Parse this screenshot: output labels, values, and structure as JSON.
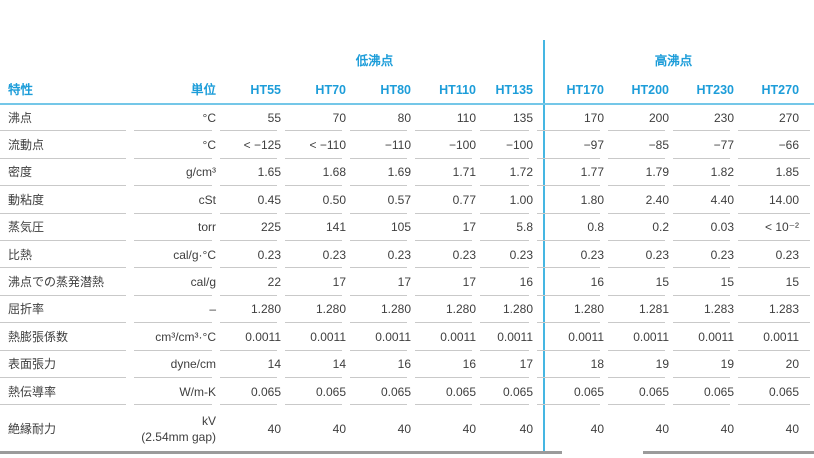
{
  "colors": {
    "header_blue": "#1d9dd9",
    "divider_blue": "#45b6e2",
    "underline_blue": "#74c7e8",
    "row_separator_gray": "#c9c9c9",
    "bottom_border_gray": "#9b9b9b",
    "body_text": "#3e3e3e"
  },
  "table": {
    "groups": {
      "low": "低沸点",
      "high": "高沸点"
    },
    "headers": {
      "property": "特性",
      "unit": "単位",
      "products": [
        "HT55",
        "HT70",
        "HT80",
        "HT110",
        "HT135",
        "HT170",
        "HT200",
        "HT230",
        "HT270"
      ]
    },
    "rows": [
      {
        "property": "沸点",
        "unit": "°C",
        "values": [
          "55",
          "70",
          "80",
          "110",
          "135",
          "170",
          "200",
          "230",
          "270"
        ]
      },
      {
        "property": "流動点",
        "unit": "°C",
        "values": [
          "< −125",
          "< −110",
          "−110",
          "−100",
          "−100",
          "−97",
          "−85",
          "−77",
          "−66"
        ]
      },
      {
        "property": "密度",
        "unit": "g/cm³",
        "values": [
          "1.65",
          "1.68",
          "1.69",
          "1.71",
          "1.72",
          "1.77",
          "1.79",
          "1.82",
          "1.85"
        ]
      },
      {
        "property": "動粘度",
        "unit": "cSt",
        "values": [
          "0.45",
          "0.50",
          "0.57",
          "0.77",
          "1.00",
          "1.80",
          "2.40",
          "4.40",
          "14.00"
        ]
      },
      {
        "property": "蒸気圧",
        "unit": "torr",
        "values": [
          "225",
          "141",
          "105",
          "17",
          "5.8",
          "0.8",
          "0.2",
          "0.03",
          "< 10⁻²"
        ]
      },
      {
        "property": "比熱",
        "unit": "cal/g·°C",
        "values": [
          "0.23",
          "0.23",
          "0.23",
          "0.23",
          "0.23",
          "0.23",
          "0.23",
          "0.23",
          "0.23"
        ]
      },
      {
        "property": "沸点での蒸発潜熱",
        "unit": "cal/g",
        "values": [
          "22",
          "17",
          "17",
          "17",
          "16",
          "16",
          "15",
          "15",
          "15"
        ]
      },
      {
        "property": "屈折率",
        "unit": "–",
        "values": [
          "1.280",
          "1.280",
          "1.280",
          "1.280",
          "1.280",
          "1.280",
          "1.281",
          "1.283",
          "1.283"
        ]
      },
      {
        "property": "熱膨張係数",
        "unit": "cm³/cm³·°C",
        "values": [
          "0.0011",
          "0.0011",
          "0.0011",
          "0.0011",
          "0.0011",
          "0.0011",
          "0.0011",
          "0.0011",
          "0.0011"
        ]
      },
      {
        "property": "表面張力",
        "unit": "dyne/cm",
        "values": [
          "14",
          "14",
          "16",
          "16",
          "17",
          "18",
          "19",
          "19",
          "20"
        ]
      },
      {
        "property": "熱伝導率",
        "unit": "W/m-K",
        "values": [
          "0.065",
          "0.065",
          "0.065",
          "0.065",
          "0.065",
          "0.065",
          "0.065",
          "0.065",
          "0.065"
        ]
      },
      {
        "property": "絶縁耐力",
        "unit": "kV",
        "unit_note": "(2.54mm gap)",
        "values": [
          "40",
          "40",
          "40",
          "40",
          "40",
          "40",
          "40",
          "40",
          "40"
        ]
      }
    ]
  }
}
